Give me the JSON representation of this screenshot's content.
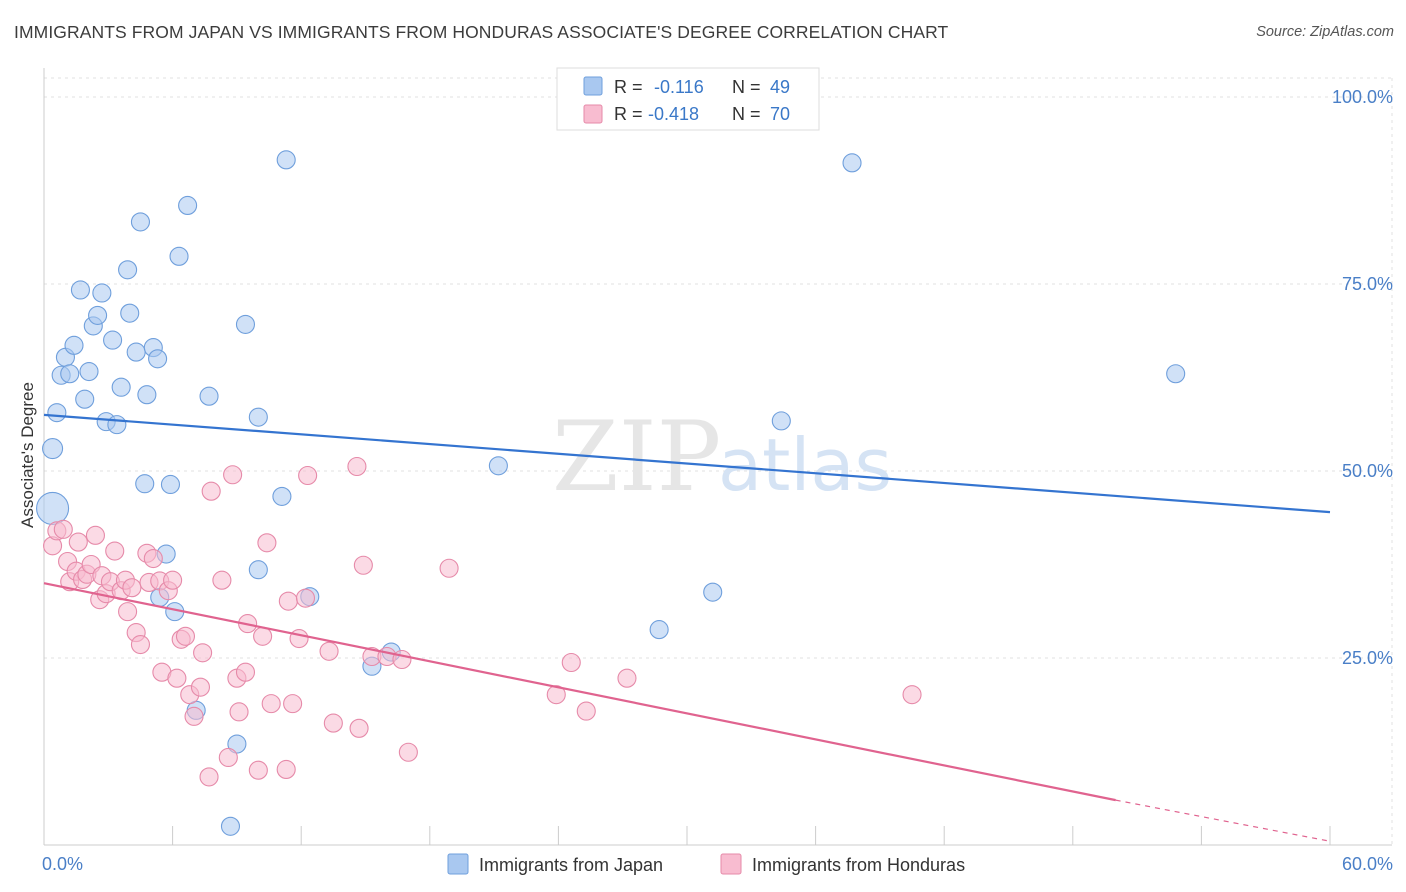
{
  "header": {
    "title": "IMMIGRANTS FROM JAPAN VS IMMIGRANTS FROM HONDURAS ASSOCIATE'S DEGREE CORRELATION CHART",
    "source": "Source: ZipAtlas.com"
  },
  "watermark": {
    "zip": "ZIP",
    "atlas": "atlas"
  },
  "legend": {
    "r_label": "R =",
    "n_label": "N =",
    "series": [
      {
        "r": "-0.116",
        "n": "49",
        "color": "#a9c8f0",
        "stroke": "#6f9fdc"
      },
      {
        "r": "-0.418",
        "n": "70",
        "color": "#f8bcd0",
        "stroke": "#e68aa9"
      }
    ]
  },
  "chart_data": {
    "type": "scatter",
    "title": "IMMIGRANTS FROM JAPAN VS IMMIGRANTS FROM HONDURAS ASSOCIATE'S DEGREE CORRELATION CHART",
    "xlabel": "",
    "ylabel": "Associate's Degree",
    "xlim": [
      0,
      60
    ],
    "ylim": [
      0,
      100
    ],
    "x_ticks": [
      "0.0%",
      "60.0%"
    ],
    "y_ticks": [
      {
        "value": 25,
        "label": "25.0%"
      },
      {
        "value": 50,
        "label": "50.0%"
      },
      {
        "value": 75,
        "label": "75.0%"
      },
      {
        "value": 100,
        "label": "100.0%"
      }
    ],
    "grid": true,
    "legend_position": "bottom",
    "series": [
      {
        "name": "Immigrants from Japan",
        "color": "#a9c8f0",
        "stroke": "#6f9fdc",
        "line_color": "#3474d0",
        "trend": {
          "x1": 0,
          "y1": 57.5,
          "x2": 60,
          "y2": 44.5
        },
        "points": [
          [
            0.4,
            45.0,
            16
          ],
          [
            0.4,
            53.0,
            10
          ],
          [
            0.6,
            57.8,
            9
          ],
          [
            0.8,
            62.8,
            9
          ],
          [
            1.0,
            65.2,
            9
          ],
          [
            1.2,
            63.0,
            9
          ],
          [
            1.4,
            66.8,
            9
          ],
          [
            1.7,
            74.2,
            9
          ],
          [
            1.9,
            59.6,
            9
          ],
          [
            2.1,
            63.3,
            9
          ],
          [
            2.3,
            69.4,
            9
          ],
          [
            2.5,
            70.8,
            9
          ],
          [
            2.7,
            73.8,
            9
          ],
          [
            2.9,
            56.6,
            9
          ],
          [
            3.2,
            67.5,
            9
          ],
          [
            3.4,
            56.2,
            9
          ],
          [
            3.6,
            61.2,
            9
          ],
          [
            3.9,
            76.9,
            9
          ],
          [
            4.0,
            71.1,
            9
          ],
          [
            4.3,
            65.9,
            9
          ],
          [
            4.5,
            83.3,
            9
          ],
          [
            4.7,
            48.3,
            9
          ],
          [
            4.8,
            60.2,
            9
          ],
          [
            5.1,
            66.5,
            9
          ],
          [
            5.3,
            65.0,
            9
          ],
          [
            5.4,
            33.1,
            9
          ],
          [
            5.7,
            38.9,
            9
          ],
          [
            5.9,
            48.2,
            9
          ],
          [
            6.1,
            31.2,
            9
          ],
          [
            6.3,
            78.7,
            9
          ],
          [
            6.7,
            85.5,
            9
          ],
          [
            7.1,
            18.0,
            9
          ],
          [
            7.7,
            60.0,
            9
          ],
          [
            8.7,
            2.5,
            9
          ],
          [
            9.0,
            13.5,
            9
          ],
          [
            9.4,
            69.6,
            9
          ],
          [
            10.0,
            57.2,
            9
          ],
          [
            10.0,
            36.8,
            9
          ],
          [
            11.1,
            46.6,
            9
          ],
          [
            11.3,
            91.6,
            9
          ],
          [
            12.4,
            33.2,
            9
          ],
          [
            15.3,
            23.9,
            9
          ],
          [
            16.2,
            25.8,
            9
          ],
          [
            21.2,
            50.7,
            9
          ],
          [
            28.7,
            28.8,
            9
          ],
          [
            31.2,
            33.8,
            9
          ],
          [
            34.4,
            56.7,
            9
          ],
          [
            37.7,
            91.2,
            9
          ],
          [
            52.8,
            63.0,
            9
          ]
        ]
      },
      {
        "name": "Immigrants from Honduras",
        "color": "#f8bcd0",
        "stroke": "#e68aa9",
        "line_color": "#e0638f",
        "trend": {
          "x1": 0,
          "y1": 35.0,
          "x2": 50,
          "y2": 6.0
        },
        "trend_dashed": {
          "x1": 50,
          "y1": 6.0,
          "x2": 60,
          "y2": 0.5
        },
        "points": [
          [
            0.4,
            40.0,
            9
          ],
          [
            0.6,
            42.0,
            9
          ],
          [
            0.9,
            42.2,
            9
          ],
          [
            1.1,
            37.9,
            9
          ],
          [
            1.2,
            35.2,
            9
          ],
          [
            1.5,
            36.6,
            9
          ],
          [
            1.6,
            40.5,
            9
          ],
          [
            1.8,
            35.5,
            9
          ],
          [
            2.0,
            36.2,
            9
          ],
          [
            2.2,
            37.5,
            9
          ],
          [
            2.4,
            41.4,
            9
          ],
          [
            2.6,
            32.8,
            9
          ],
          [
            2.7,
            36.0,
            9
          ],
          [
            2.9,
            33.6,
            9
          ],
          [
            3.1,
            35.2,
            9
          ],
          [
            3.3,
            39.3,
            9
          ],
          [
            3.6,
            34.0,
            9
          ],
          [
            3.8,
            35.4,
            9
          ],
          [
            3.9,
            31.2,
            9
          ],
          [
            4.1,
            34.4,
            9
          ],
          [
            4.3,
            28.4,
            9
          ],
          [
            4.5,
            26.8,
            9
          ],
          [
            4.8,
            39.0,
            9
          ],
          [
            4.9,
            35.1,
            9
          ],
          [
            5.1,
            38.3,
            9
          ],
          [
            5.4,
            35.3,
            9
          ],
          [
            5.5,
            23.1,
            9
          ],
          [
            5.8,
            34.0,
            9
          ],
          [
            6.0,
            35.4,
            9
          ],
          [
            6.2,
            22.3,
            9
          ],
          [
            6.4,
            27.5,
            9
          ],
          [
            6.6,
            27.9,
            9
          ],
          [
            6.8,
            20.1,
            9
          ],
          [
            7.0,
            17.2,
            9
          ],
          [
            7.3,
            21.1,
            9
          ],
          [
            7.4,
            25.7,
            9
          ],
          [
            7.7,
            9.1,
            9
          ],
          [
            7.8,
            47.3,
            9
          ],
          [
            8.3,
            35.4,
            9
          ],
          [
            8.6,
            11.7,
            9
          ],
          [
            8.8,
            49.5,
            9
          ],
          [
            9.0,
            22.3,
            9
          ],
          [
            9.1,
            17.8,
            9
          ],
          [
            9.4,
            23.1,
            9
          ],
          [
            9.5,
            29.6,
            9
          ],
          [
            10.0,
            10.0,
            9
          ],
          [
            10.2,
            27.9,
            9
          ],
          [
            10.4,
            40.4,
            9
          ],
          [
            10.6,
            18.9,
            9
          ],
          [
            11.3,
            10.1,
            9
          ],
          [
            11.4,
            32.6,
            9
          ],
          [
            11.6,
            18.9,
            9
          ],
          [
            11.9,
            27.6,
            9
          ],
          [
            12.2,
            33.0,
            9
          ],
          [
            12.3,
            49.4,
            9
          ],
          [
            13.3,
            25.9,
            9
          ],
          [
            13.5,
            16.3,
            9
          ],
          [
            14.6,
            50.6,
            9
          ],
          [
            14.7,
            15.6,
            9
          ],
          [
            14.9,
            37.4,
            9
          ],
          [
            15.3,
            25.2,
            9
          ],
          [
            16.0,
            25.2,
            9
          ],
          [
            16.7,
            24.8,
            9
          ],
          [
            17.0,
            12.4,
            9
          ],
          [
            18.9,
            37.0,
            9
          ],
          [
            23.9,
            20.1,
            9
          ],
          [
            24.6,
            24.4,
            9
          ],
          [
            25.3,
            17.9,
            9
          ],
          [
            27.2,
            22.3,
            9
          ],
          [
            40.5,
            20.1,
            9
          ]
        ]
      }
    ]
  },
  "bottom_legend": [
    {
      "label": "Immigrants from Japan"
    },
    {
      "label": "Immigrants from Honduras"
    }
  ]
}
